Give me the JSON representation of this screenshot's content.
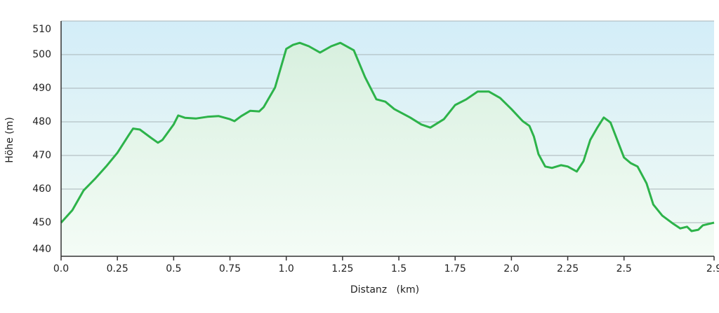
{
  "chart_data": {
    "type": "area-line",
    "x_label": "Distanz   (km)",
    "y_label": "Höhe (m)",
    "x": [
      0,
      0.05,
      0.1,
      0.15,
      0.2,
      0.25,
      0.3,
      0.32,
      0.35,
      0.4,
      0.43,
      0.45,
      0.5,
      0.52,
      0.55,
      0.6,
      0.65,
      0.7,
      0.75,
      0.77,
      0.8,
      0.84,
      0.88,
      0.9,
      0.95,
      1.0,
      1.03,
      1.06,
      1.1,
      1.15,
      1.2,
      1.24,
      1.3,
      1.35,
      1.4,
      1.44,
      1.48,
      1.55,
      1.6,
      1.64,
      1.7,
      1.75,
      1.8,
      1.85,
      1.9,
      1.95,
      2.0,
      2.05,
      2.08,
      2.1,
      2.12,
      2.15,
      2.18,
      2.22,
      2.25,
      2.29,
      2.32,
      2.35,
      2.38,
      2.41,
      2.44,
      2.47,
      2.5,
      2.53,
      2.56,
      2.6,
      2.63,
      2.67,
      2.72,
      2.75,
      2.78,
      2.8,
      2.83,
      2.85,
      2.9
    ],
    "series": [
      {
        "color": "#2db34a",
        "values": [
          450,
          453.7,
          459.6,
          463,
          466.7,
          470.8,
          476,
          478,
          477.7,
          475.2,
          473.8,
          474.6,
          479.2,
          481.9,
          481.2,
          481,
          481.5,
          481.7,
          480.8,
          480.2,
          481.7,
          483.3,
          483.1,
          484.4,
          490.2,
          501.7,
          502.9,
          503.5,
          502.5,
          500.6,
          502.5,
          503.5,
          501.3,
          493.3,
          486.7,
          486,
          483.8,
          481.3,
          479.2,
          478.3,
          480.8,
          485,
          486.7,
          489,
          489,
          487.1,
          483.8,
          480.2,
          478.8,
          475.6,
          470.4,
          466.7,
          466.3,
          467.1,
          466.7,
          465.2,
          468.3,
          474.6,
          478.1,
          481.3,
          479.8,
          474.6,
          469.4,
          467.7,
          466.7,
          461.7,
          455.4,
          452.1,
          449.6,
          448.3,
          448.8,
          447.5,
          447.9,
          449.2,
          450
        ]
      }
    ],
    "xlim": [
      0,
      2.9
    ],
    "xticks": [
      {
        "value": 0,
        "label": "0.0"
      },
      0.25,
      0.5,
      0.75,
      {
        "value": 1,
        "label": "1.0"
      },
      1.25,
      1.5,
      1.75,
      {
        "value": 2,
        "label": "2.0"
      },
      2.25,
      2.5,
      2.9
    ],
    "ylim": [
      440,
      510
    ],
    "yticks": [
      440,
      450,
      460,
      470,
      480,
      490,
      500,
      510
    ],
    "grid": true
  }
}
